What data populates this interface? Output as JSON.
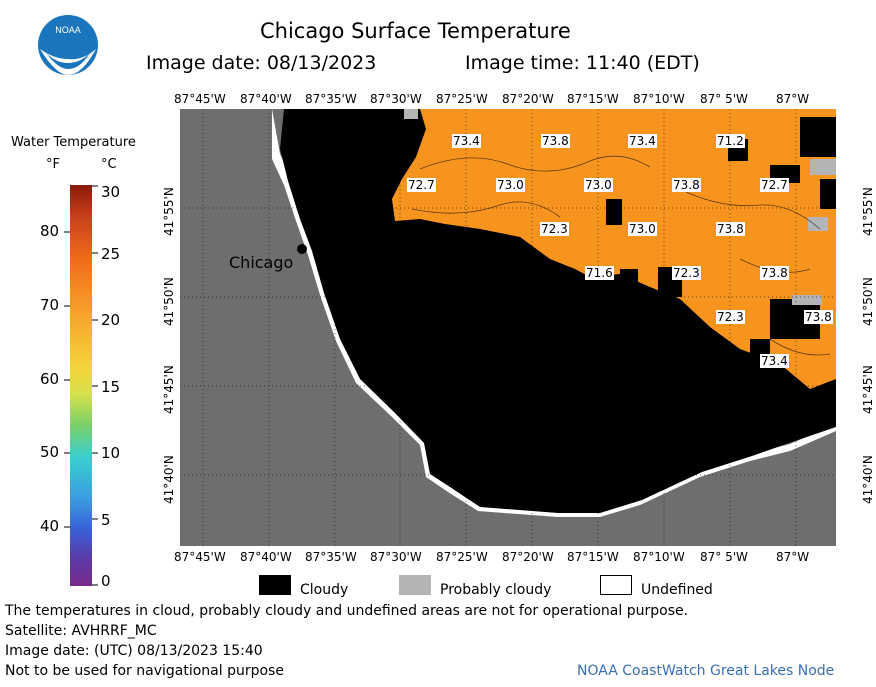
{
  "header": {
    "title": "Chicago Surface Temperature",
    "image_date": "Image date: 08/13/2023",
    "image_time": "Image time: 11:40 (EDT)"
  },
  "logo": {
    "text": "NOAA"
  },
  "scale": {
    "title": "Water Temperature",
    "unit_f": "°F",
    "unit_c": "°C",
    "f_ticks": [
      "80",
      "70",
      "60",
      "50",
      "40"
    ],
    "c_ticks": [
      "30",
      "25",
      "20",
      "15",
      "10",
      "5",
      "0"
    ]
  },
  "axes": {
    "lon_top": [
      "87°45'W",
      "87°40'W",
      "87°35'W",
      "87°30'W",
      "87°25'W",
      "87°20'W",
      "87°15'W",
      "87°10'W",
      "87° 5'W",
      "87°W"
    ],
    "lon_bottom": [
      "87°45'W",
      "87°40'W",
      "87°35'W",
      "87°30'W",
      "87°25'W",
      "87°20'W",
      "87°15'W",
      "87°10'W",
      "87° 5'W",
      "87°W"
    ],
    "lat": [
      "41°55'N",
      "41°50'N",
      "41°45'N",
      "41°40'N"
    ]
  },
  "map": {
    "city_label": "Chicago",
    "temperature_labels": [
      "73.4",
      "73.8",
      "73.4",
      "71.2",
      "72.7",
      "73.0",
      "73.0",
      "73.8",
      "72.7",
      "72.3",
      "73.0",
      "73.8",
      "71.6",
      "72.3",
      "73.8",
      "72.3",
      "73.8",
      "73.4"
    ],
    "colors": {
      "water_warm": "#f7941d",
      "cloud": "#000000",
      "land": "#6e6e6e",
      "probably_cloudy": "#b4b4b4",
      "undefined": "#ffffff"
    }
  },
  "legend": {
    "cloudy": "Cloudy",
    "probably_cloudy": "Probably cloudy",
    "undefined": "Undefined"
  },
  "footer": {
    "disclaimer": "The temperatures in cloud, probably cloudy and undefined areas are not for operational purpose.",
    "satellite": "Satellite: AVHRRF_MC",
    "utc_date": "Image date: (UTC) 08/13/2023  15:40",
    "nav_warning": "Not to be used for navigational purpose",
    "credit": "NOAA CoastWatch Great Lakes Node"
  }
}
